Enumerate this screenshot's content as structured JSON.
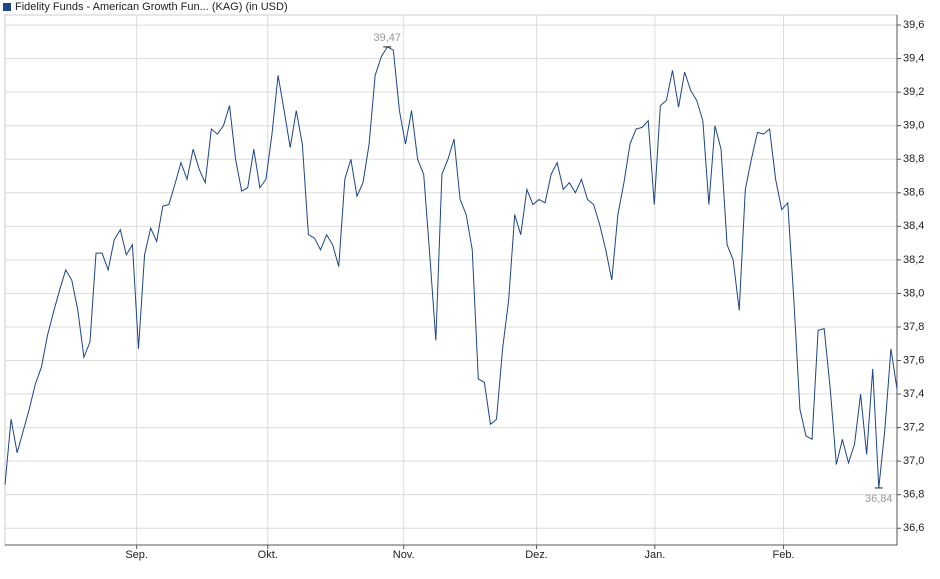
{
  "chart_data": {
    "type": "line",
    "series": [
      {
        "name": "Fidelity Funds - American Growth Fun... (KAG) (in USD)",
        "color": "#1c4587",
        "values": [
          36.86,
          37.25,
          37.05,
          37.18,
          37.31,
          37.46,
          37.56,
          37.75,
          37.89,
          38.02,
          38.14,
          38.08,
          37.9,
          37.62,
          37.71,
          38.24,
          38.24,
          38.14,
          38.32,
          38.38,
          38.23,
          38.29,
          37.67,
          38.23,
          38.39,
          38.31,
          38.52,
          38.53,
          38.65,
          38.78,
          38.68,
          38.86,
          38.74,
          38.66,
          38.98,
          38.95,
          39.0,
          39.12,
          38.8,
          38.61,
          38.63,
          38.86,
          38.63,
          38.68,
          38.95,
          39.3,
          39.09,
          38.87,
          39.09,
          38.89,
          38.35,
          38.33,
          38.26,
          38.35,
          38.29,
          38.16,
          38.68,
          38.8,
          38.58,
          38.66,
          38.89,
          39.3,
          39.41,
          39.47,
          39.45,
          39.09,
          38.89,
          39.09,
          38.8,
          38.71,
          38.23,
          37.72,
          38.71,
          38.8,
          38.92,
          38.56,
          38.47,
          38.26,
          37.49,
          37.47,
          37.22,
          37.25,
          37.67,
          37.96,
          38.47,
          38.35,
          38.62,
          38.53,
          38.56,
          38.54,
          38.71,
          38.78,
          38.62,
          38.66,
          38.6,
          38.68,
          38.56,
          38.53,
          38.41,
          38.26,
          38.08,
          38.47,
          38.66,
          38.89,
          38.98,
          38.99,
          39.03,
          38.53,
          39.12,
          39.15,
          39.33,
          39.11,
          39.32,
          39.21,
          39.15,
          39.03,
          38.53,
          39.0,
          38.86,
          38.29,
          38.2,
          37.9,
          38.62,
          38.8,
          38.96,
          38.95,
          38.98,
          38.68,
          38.5,
          38.54,
          37.96,
          37.31,
          37.15,
          37.13,
          37.78,
          37.79,
          37.43,
          36.98,
          37.13,
          36.99,
          37.1,
          37.4,
          37.04,
          37.55,
          36.84,
          37.19,
          37.67,
          37.43
        ]
      }
    ],
    "x": [
      0,
      1,
      2,
      3,
      4,
      5,
      6,
      7,
      8,
      9,
      10,
      11,
      12,
      13,
      14,
      15,
      16,
      17,
      18,
      19,
      20,
      21,
      22,
      23,
      24,
      25,
      26,
      27,
      28,
      29,
      30,
      31,
      32,
      33,
      34,
      35,
      36,
      37,
      38,
      39,
      40,
      41,
      42,
      43,
      44,
      45,
      46,
      47,
      48,
      49,
      50,
      51,
      52,
      53,
      54,
      55,
      56,
      57,
      58,
      59,
      60,
      61,
      62,
      63,
      64,
      65,
      66,
      67,
      68,
      69,
      70,
      71,
      72,
      73,
      74,
      75,
      76,
      77,
      78,
      79,
      80,
      81,
      82,
      83,
      84,
      85,
      86,
      87,
      88,
      89,
      90,
      91,
      92,
      93,
      94,
      95,
      96,
      97,
      98,
      99,
      100,
      101,
      102,
      103,
      104,
      105,
      106,
      107,
      108,
      109,
      110,
      111,
      112,
      113,
      114,
      115,
      116,
      117,
      118,
      119,
      120,
      121,
      122,
      123,
      124,
      125,
      126,
      127,
      128,
      129,
      130,
      131,
      132,
      133,
      134,
      135,
      136,
      137,
      138,
      139,
      140,
      141,
      142,
      143,
      144,
      145,
      146,
      147
    ],
    "xlim": [
      0,
      147
    ],
    "xticks": [
      {
        "value": 21.7,
        "label": "Sep."
      },
      {
        "value": 43.3,
        "label": "Okt."
      },
      {
        "value": 65.7,
        "label": "Nov."
      },
      {
        "value": 87.6,
        "label": "Dez."
      },
      {
        "value": 107.1,
        "label": "Jan."
      },
      {
        "value": 128.3,
        "label": "Feb."
      }
    ],
    "ylim": [
      36.5,
      39.66
    ],
    "yticks": [
      {
        "value": 36.6,
        "label": "36,6"
      },
      {
        "value": 36.8,
        "label": "36,8"
      },
      {
        "value": 37.0,
        "label": "37,0"
      },
      {
        "value": 37.2,
        "label": "37,2"
      },
      {
        "value": 37.4,
        "label": "37,4"
      },
      {
        "value": 37.6,
        "label": "37,6"
      },
      {
        "value": 37.8,
        "label": "37,8"
      },
      {
        "value": 38.0,
        "label": "38,0"
      },
      {
        "value": 38.2,
        "label": "38,2"
      },
      {
        "value": 38.4,
        "label": "38,4"
      },
      {
        "value": 38.6,
        "label": "38,6"
      },
      {
        "value": 38.8,
        "label": "38,8"
      },
      {
        "value": 39.0,
        "label": "39,0"
      },
      {
        "value": 39.2,
        "label": "39,2"
      },
      {
        "value": 39.4,
        "label": "39,4"
      },
      {
        "value": 39.6,
        "label": "39,6"
      }
    ],
    "grid": true,
    "annotations": [
      {
        "index": 63,
        "value": 39.47,
        "label": "39,47",
        "position": "above"
      },
      {
        "index": 144,
        "value": 36.84,
        "label": "36,84",
        "position": "below"
      }
    ]
  }
}
